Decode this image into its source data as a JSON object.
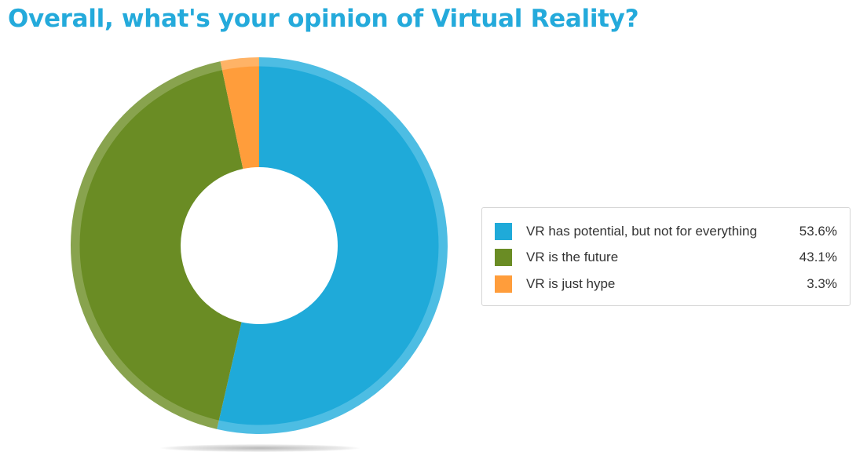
{
  "colors": {
    "title": "#24aadb",
    "slices": [
      "#1faad9",
      "#6a8c24",
      "#ff9d3b"
    ],
    "rims": [
      "#4dbde3",
      "#88a34e",
      "#ffb366"
    ]
  },
  "chart_data": {
    "type": "pie",
    "title": "Overall, what's your opinion of Virtual Reality?",
    "labels": [
      "VR has potential, but not for everything",
      "VR is the future",
      "VR is just hype"
    ],
    "values": [
      53.6,
      43.1,
      3.3
    ],
    "value_labels": [
      "53.6%",
      "43.1%",
      "3.3%"
    ],
    "donut": true,
    "legend_position": "right"
  }
}
